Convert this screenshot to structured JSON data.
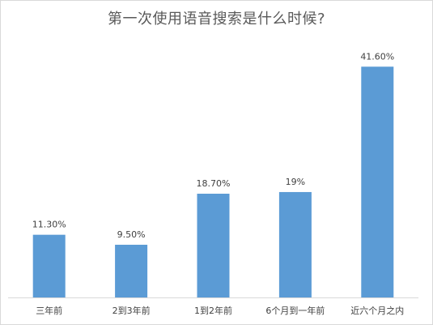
{
  "chart_data": {
    "type": "bar",
    "title": "第一次使用语音搜索是什么时候?",
    "xlabel": "",
    "ylabel": "",
    "categories": [
      "三年前",
      "2到3年前",
      "1到2年前",
      "6个月到一年前",
      "近六个月之内"
    ],
    "values": [
      11.3,
      9.5,
      18.7,
      19,
      41.6
    ],
    "data_labels": [
      "11.30%",
      "9.50%",
      "18.70%",
      "19%",
      "41.60%"
    ],
    "ylim": [
      0,
      45
    ],
    "grid": false,
    "legend": "none",
    "colors": {
      "bar": "#5b9bd5",
      "title": "#595959",
      "text": "#404040",
      "axis": "#d9d9d9"
    }
  }
}
